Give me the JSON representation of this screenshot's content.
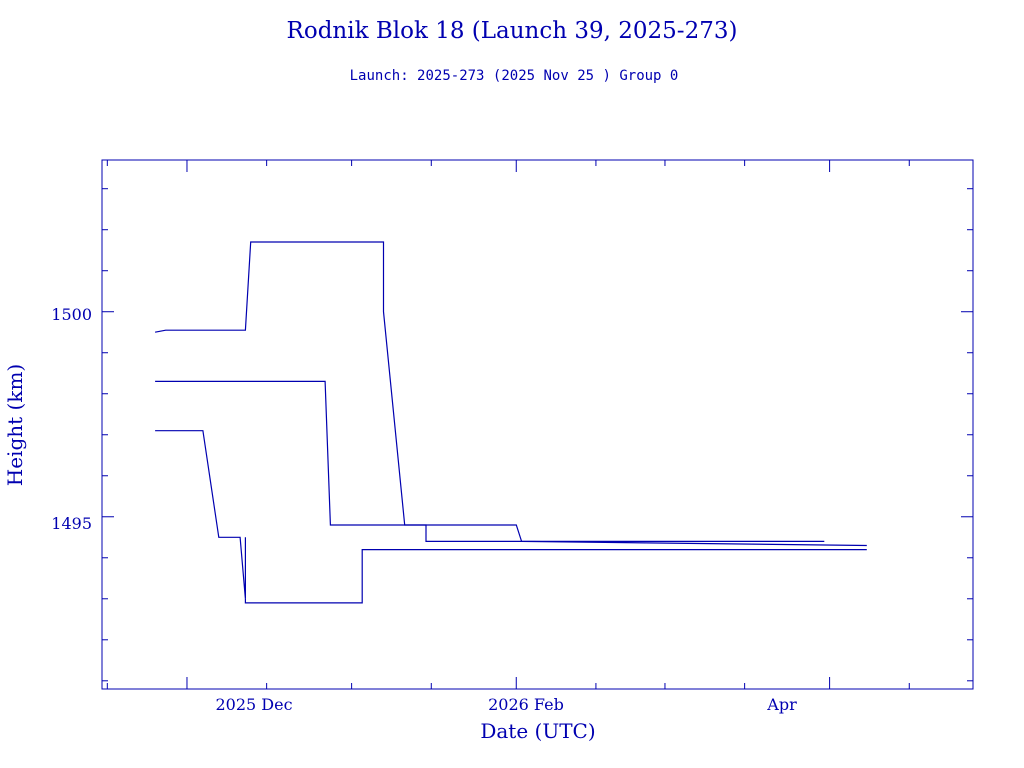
{
  "chart_data": {
    "type": "line",
    "title": "Rodnik Blok 18 (Launch 39, 2025-273)",
    "subtitle": "Launch: 2025-273  (2025 Nov 25 )  Group 0",
    "xlabel": "Date (UTC)",
    "ylabel": "Height (km)",
    "x_tick_labels": [
      "2025 Dec",
      "2026 Feb",
      "Apr"
    ],
    "y_tick_labels": [
      "1495",
      "1500"
    ],
    "xlim": [
      "2025-11-15",
      "2026-04-28"
    ],
    "ylim": [
      1490.8,
      1503.7
    ],
    "y_major_ticks": [
      1495,
      1500
    ],
    "y_minor_step": 1,
    "color": "#0000b0",
    "series": [
      {
        "points": [
          [
            "2025-11-25",
            1499.5
          ],
          [
            "2025-11-27",
            1499.55
          ],
          [
            "2025-12-12",
            1499.55
          ],
          [
            "2025-12-13",
            1501.7
          ],
          [
            "2025-12-24",
            1501.7
          ],
          [
            "2026-01-07",
            1501.7
          ],
          [
            "2026-01-07",
            1500.0
          ],
          [
            "2026-01-11",
            1494.8
          ],
          [
            "2026-01-15",
            1494.8
          ],
          [
            "2026-01-15",
            1494.4
          ],
          [
            "2026-03-31",
            1494.4
          ]
        ]
      },
      {
        "points": [
          [
            "2025-11-25",
            1498.3
          ],
          [
            "2025-12-27",
            1498.3
          ],
          [
            "2025-12-28",
            1494.8
          ],
          [
            "2026-02-01",
            1494.8
          ],
          [
            "2026-02-02",
            1494.4
          ],
          [
            "2026-04-08",
            1494.3
          ]
        ]
      },
      {
        "points": [
          [
            "2025-11-25",
            1497.1
          ],
          [
            "2025-12-04",
            1497.1
          ],
          [
            "2025-12-07",
            1494.5
          ],
          [
            "2025-12-11",
            1494.5
          ],
          [
            "2025-12-12",
            1493.0
          ],
          [
            "2025-12-12",
            1494.5
          ],
          [
            "2025-12-12",
            1492.9
          ],
          [
            "2026-01-03",
            1492.9
          ],
          [
            "2026-01-03",
            1494.2
          ],
          [
            "2026-04-08",
            1494.2
          ]
        ]
      }
    ]
  }
}
